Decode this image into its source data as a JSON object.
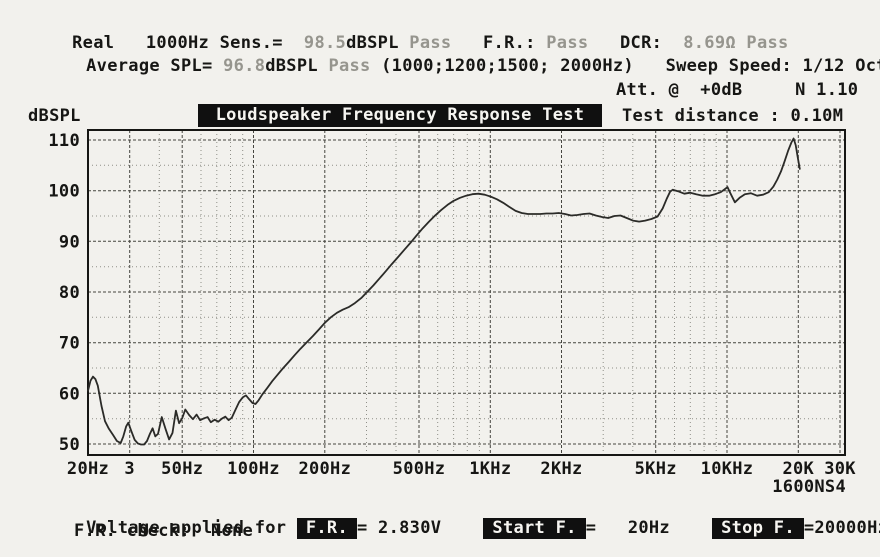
{
  "colors": {
    "paper": "#f2f1ed",
    "ink": "#161614",
    "faded": "#96958e",
    "chip_bg": "#101010",
    "chip_text": "#f6f5f1",
    "grid_major": "#45453f",
    "grid_minor": "#8f8f88",
    "curve": "#2b2b28"
  },
  "header": {
    "line1": {
      "prefix": "Real   1000Hz Sens.=  ",
      "sens_value": "98.5",
      "sens_unit": "dBSPL ",
      "sens_result": "Pass",
      "fr_label": "   F.R.: ",
      "fr_result": "Pass",
      "dcr_label": "   DCR:  ",
      "dcr_value": "8.69Ω Pass"
    },
    "line2": {
      "prefix": "Average SPL= ",
      "avg_value": "96.8",
      "avg_unit": "dBSPL ",
      "avg_result": "Pass",
      "freq_list": " (1000;1200;1500; 2000Hz)",
      "sweep_speed": "   Sweep Speed: 1/12 Oct."
    },
    "attenuation": "Att. @  +0dB     N 1.10"
  },
  "chart": {
    "y_axis_unit": "dBSPL",
    "title": "Loudspeaker Frequency Response Test",
    "test_distance": "Test distance : 0.10M",
    "model": "1600NS4"
  },
  "footer": {
    "voltage_prefix": "Voltage applied for ",
    "fr_chip": "F.R.",
    "voltage_value": "= 2.830V    ",
    "start_chip": "Start F.",
    "start_value": "=   20Hz    ",
    "stop_chip": "Stop F.",
    "stop_value": "=20000Hz",
    "fr_check": "F.R. check:  None"
  },
  "chart_data": {
    "type": "line",
    "title": "Loudspeaker Frequency Response Test",
    "ylabel": "dBSPL",
    "x_scale": "log",
    "x_range": [
      20,
      30000
    ],
    "y_range": [
      50,
      110
    ],
    "grid": true,
    "x_ticks": [
      {
        "f": 20,
        "label": "20Hz"
      },
      {
        "f": 30,
        "label": "3"
      },
      {
        "f": 50,
        "label": "50Hz"
      },
      {
        "f": 100,
        "label": "100Hz"
      },
      {
        "f": 200,
        "label": "200Hz"
      },
      {
        "f": 500,
        "label": "500Hz"
      },
      {
        "f": 1000,
        "label": "1KHz"
      },
      {
        "f": 2000,
        "label": "2KHz"
      },
      {
        "f": 5000,
        "label": "5KHz"
      },
      {
        "f": 10000,
        "label": "10KHz"
      },
      {
        "f": 20000,
        "label": "20K"
      },
      {
        "f": 30000,
        "label": "30K"
      }
    ],
    "x_minor_ticks": [
      40,
      60,
      70,
      80,
      90,
      300,
      400,
      600,
      700,
      800,
      900,
      3000,
      4000,
      6000,
      7000,
      8000,
      9000
    ],
    "y_ticks": [
      110,
      100,
      90,
      80,
      70,
      60,
      50
    ],
    "y_minor_ticks": [
      55,
      65,
      75,
      85,
      95,
      105
    ],
    "series": [
      {
        "name": "SPL frequency response",
        "points": [
          [
            20,
            60.5
          ],
          [
            20.5,
            62.5
          ],
          [
            21,
            63.3
          ],
          [
            21.5,
            62.8
          ],
          [
            22,
            61.5
          ],
          [
            22.8,
            57.5
          ],
          [
            23.6,
            54.5
          ],
          [
            24.5,
            53.0
          ],
          [
            25.5,
            51.8
          ],
          [
            26.5,
            50.6
          ],
          [
            27.5,
            50.2
          ],
          [
            28.2,
            51.5
          ],
          [
            29,
            53.5
          ],
          [
            29.6,
            54.2
          ],
          [
            30.5,
            52.5
          ],
          [
            31.5,
            50.8
          ],
          [
            32.5,
            50.1
          ],
          [
            33.5,
            49.9
          ],
          [
            34.5,
            49.9
          ],
          [
            35.5,
            50.6
          ],
          [
            36.5,
            52.0
          ],
          [
            37.5,
            53.1
          ],
          [
            38.5,
            51.5
          ],
          [
            39.5,
            52.0
          ],
          [
            41,
            55.3
          ],
          [
            42.5,
            53.0
          ],
          [
            44,
            50.9
          ],
          [
            45.5,
            52.2
          ],
          [
            47,
            56.6
          ],
          [
            48.5,
            54.1
          ],
          [
            50,
            55.1
          ],
          [
            51.5,
            56.8
          ],
          [
            53.5,
            55.7
          ],
          [
            55.5,
            54.9
          ],
          [
            57.5,
            55.8
          ],
          [
            59.5,
            54.7
          ],
          [
            62,
            55.1
          ],
          [
            64,
            55.3
          ],
          [
            66,
            54.3
          ],
          [
            68.5,
            54.8
          ],
          [
            71,
            54.4
          ],
          [
            73.5,
            55.0
          ],
          [
            76,
            55.4
          ],
          [
            78.5,
            54.7
          ],
          [
            81,
            55.2
          ],
          [
            84,
            56.8
          ],
          [
            87,
            58.3
          ],
          [
            90,
            59.2
          ],
          [
            93,
            59.6
          ],
          [
            96,
            58.8
          ],
          [
            99,
            58.1
          ],
          [
            102,
            57.9
          ],
          [
            105,
            58.6
          ],
          [
            109,
            59.8
          ],
          [
            114,
            61.0
          ],
          [
            120,
            62.4
          ],
          [
            126,
            63.6
          ],
          [
            133,
            64.9
          ],
          [
            141,
            66.2
          ],
          [
            149,
            67.5
          ],
          [
            158,
            68.8
          ],
          [
            168,
            70.1
          ],
          [
            178,
            71.3
          ],
          [
            189,
            72.6
          ],
          [
            200,
            73.9
          ],
          [
            212,
            75.0
          ],
          [
            225,
            75.9
          ],
          [
            238,
            76.5
          ],
          [
            252,
            77.0
          ],
          [
            268,
            77.8
          ],
          [
            285,
            78.8
          ],
          [
            302,
            80.0
          ],
          [
            321,
            81.3
          ],
          [
            341,
            82.7
          ],
          [
            362,
            84.1
          ],
          [
            384,
            85.5
          ],
          [
            408,
            86.9
          ],
          [
            433,
            88.3
          ],
          [
            460,
            89.7
          ],
          [
            489,
            91.2
          ],
          [
            519,
            92.6
          ],
          [
            551,
            93.9
          ],
          [
            585,
            95.1
          ],
          [
            621,
            96.2
          ],
          [
            660,
            97.2
          ],
          [
            701,
            98.0
          ],
          [
            745,
            98.6
          ],
          [
            791,
            99.0
          ],
          [
            840,
            99.3
          ],
          [
            892,
            99.4
          ],
          [
            947,
            99.2
          ],
          [
            1006,
            98.8
          ],
          [
            1068,
            98.3
          ],
          [
            1134,
            97.6
          ],
          [
            1204,
            96.8
          ],
          [
            1279,
            96.0
          ],
          [
            1358,
            95.6
          ],
          [
            1442,
            95.4
          ],
          [
            1531,
            95.4
          ],
          [
            1626,
            95.4
          ],
          [
            1727,
            95.5
          ],
          [
            1834,
            95.5
          ],
          [
            1947,
            95.6
          ],
          [
            2068,
            95.4
          ],
          [
            2196,
            95.1
          ],
          [
            2332,
            95.2
          ],
          [
            2476,
            95.4
          ],
          [
            2629,
            95.5
          ],
          [
            2792,
            95.1
          ],
          [
            2965,
            94.8
          ],
          [
            3148,
            94.6
          ],
          [
            3343,
            95.0
          ],
          [
            3550,
            95.1
          ],
          [
            3770,
            94.6
          ],
          [
            4003,
            94.1
          ],
          [
            4251,
            93.9
          ],
          [
            4514,
            94.1
          ],
          [
            4793,
            94.4
          ],
          [
            5090,
            94.9
          ],
          [
            5350,
            96.5
          ],
          [
            5560,
            98.4
          ],
          [
            5750,
            99.8
          ],
          [
            5900,
            100.2
          ],
          [
            6200,
            99.9
          ],
          [
            6600,
            99.4
          ],
          [
            7000,
            99.6
          ],
          [
            7400,
            99.3
          ],
          [
            7900,
            99.0
          ],
          [
            8400,
            99.0
          ],
          [
            8900,
            99.3
          ],
          [
            9400,
            99.7
          ],
          [
            9800,
            100.3
          ],
          [
            10050,
            100.7
          ],
          [
            10350,
            99.4
          ],
          [
            10800,
            97.7
          ],
          [
            11300,
            98.6
          ],
          [
            11900,
            99.3
          ],
          [
            12600,
            99.5
          ],
          [
            13400,
            99.0
          ],
          [
            14200,
            99.2
          ],
          [
            15000,
            99.7
          ],
          [
            15700,
            100.8
          ],
          [
            16300,
            102.2
          ],
          [
            16900,
            103.8
          ],
          [
            17500,
            105.8
          ],
          [
            18100,
            107.8
          ],
          [
            18700,
            109.5
          ],
          [
            19100,
            110.3
          ],
          [
            19500,
            109.0
          ],
          [
            19900,
            106.5
          ],
          [
            20300,
            104.3
          ]
        ]
      }
    ]
  }
}
